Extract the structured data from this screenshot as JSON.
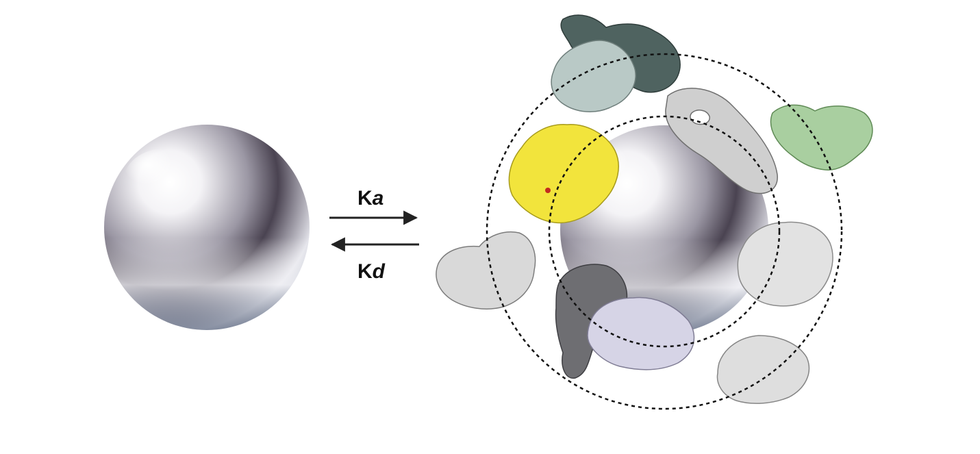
{
  "rates": {
    "association": {
      "symbol": "K",
      "subscript": "a"
    },
    "dissociation": {
      "symbol": "K",
      "subscript": "d"
    }
  },
  "colors": {
    "background": "#ffffff",
    "arrow": "#222222",
    "corona_ring": "#111111",
    "protein_yellow": "#f2e43c",
    "protein_green": "#a9cfa0",
    "protein_dark_teal": "#4f6360",
    "protein_light_teal": "#b9c9c6",
    "protein_grey": "#cfcfcf",
    "protein_lavender": "#d6d4e6",
    "protein_dark_grey": "#6e6e72"
  },
  "diagram": {
    "left_object": "bare-nanoparticle",
    "right_object": "nanoparticle-with-protein-corona",
    "corona_layers": [
      "hard-corona-ring",
      "soft-corona-ring"
    ],
    "proteins": [
      "protein-dark-teal",
      "protein-light-teal",
      "protein-ring-grey",
      "protein-green",
      "protein-yellow",
      "protein-left-grey",
      "protein-right-grey",
      "protein-bottom-dark",
      "protein-bottom-lavender",
      "protein-bottom-right-grey"
    ]
  }
}
